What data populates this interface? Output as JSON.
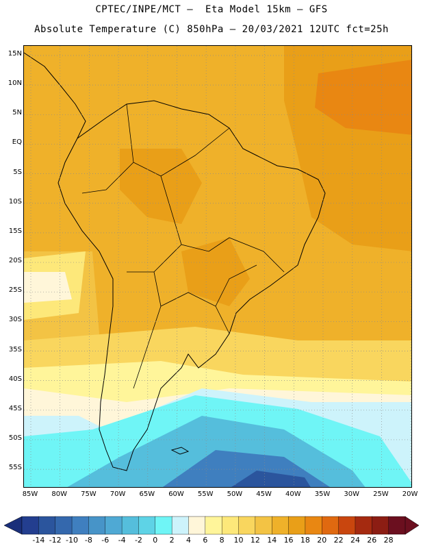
{
  "title_line1": "CPTEC/INPE/MCT –  Eta Model 15km – GFS",
  "title_line2": "Absolute Temperature (C) 850hPa – 20/03/2021 12UTC fct=25h",
  "lat_labels": [
    "15N",
    "10N",
    "5N",
    "EQ",
    "5S",
    "10S",
    "15S",
    "20S",
    "25S",
    "30S",
    "35S",
    "40S",
    "45S",
    "50S",
    "55S"
  ],
  "lon_labels": [
    "85W",
    "80W",
    "75W",
    "70W",
    "65W",
    "60W",
    "55W",
    "50W",
    "45W",
    "40W",
    "35W",
    "30W",
    "25W",
    "20W"
  ],
  "colorbar": {
    "labels": [
      "-14",
      "-12",
      "-10",
      "-8",
      "-6",
      "-4",
      "-2",
      "0",
      "2",
      "4",
      "6",
      "8",
      "10",
      "12",
      "14",
      "16",
      "18",
      "20",
      "22",
      "24",
      "26",
      "28"
    ],
    "colors": [
      "#233e8f",
      "#2b559d",
      "#3468ad",
      "#3f7fbf",
      "#4794c8",
      "#4fa9d4",
      "#55bedc",
      "#5ed3e6",
      "#6ff5f6",
      "#cdf3fb",
      "#fff6d9",
      "#fff59a",
      "#fde87a",
      "#f9d65e",
      "#f3c344",
      "#efb12a",
      "#e99f18",
      "#e98712",
      "#e06910",
      "#c9460e",
      "#a52a10",
      "#8c1d13",
      "#6b0f1f"
    ],
    "under_color": "#1a2f7a",
    "over_color": "#6b0f1f"
  },
  "colors": {
    "land_border": "#000000",
    "grid": "#8a8a8a"
  }
}
